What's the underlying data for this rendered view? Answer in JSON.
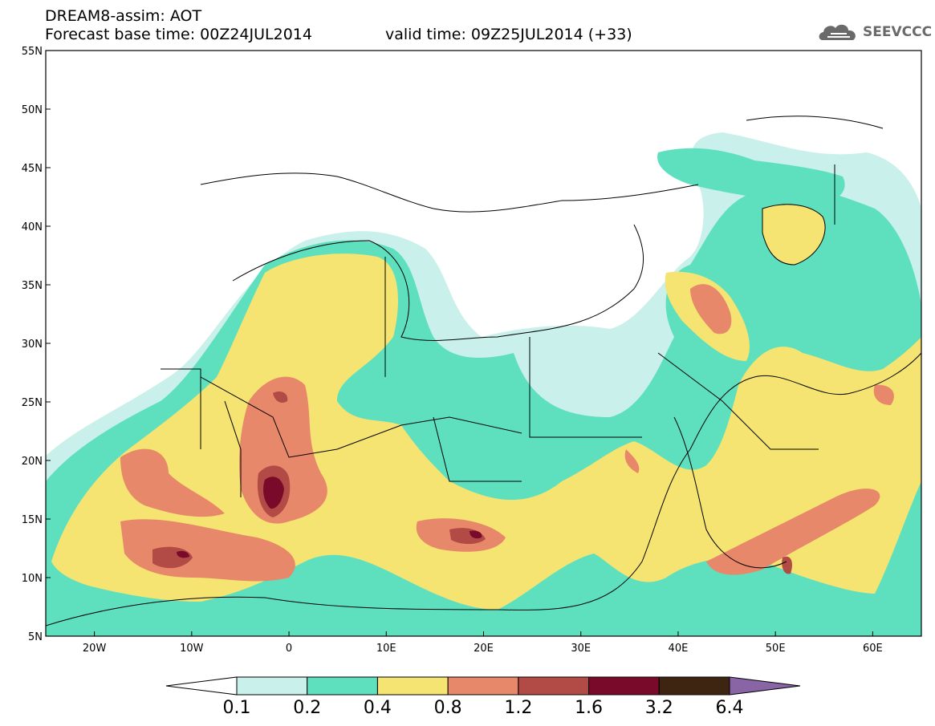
{
  "header": {
    "line1": "DREAM8-assim: AOT",
    "line2": "Forecast base time: 00Z24JUL2014",
    "line3": "valid time: 09Z25JUL2014 (+33)"
  },
  "brand": {
    "name": "SEEVCCC",
    "icon": "cloud-logo-icon",
    "color": "#6a6a6a"
  },
  "map_data": {
    "type": "filled-contour",
    "variable": "AOT",
    "lon_range": [
      -25,
      65
    ],
    "lat_range": [
      5,
      55
    ],
    "lon_ticks": [
      "20W",
      "10W",
      "0",
      "10E",
      "20E",
      "30E",
      "40E",
      "50E",
      "60E"
    ],
    "lat_ticks": [
      "5N",
      "10N",
      "15N",
      "20N",
      "25N",
      "30N",
      "35N",
      "40N",
      "45N",
      "50N",
      "55N"
    ],
    "colorbar": {
      "levels": [
        "0.1",
        "0.2",
        "0.4",
        "0.8",
        "1.2",
        "1.6",
        "3.2",
        "6.4"
      ],
      "colors": [
        "#ffffff",
        "#c9f0ea",
        "#5ee0bf",
        "#f5e372",
        "#e8886a",
        "#b24b45",
        "#7a0a2a",
        "#3d2512",
        "#8a65a6"
      ]
    }
  }
}
